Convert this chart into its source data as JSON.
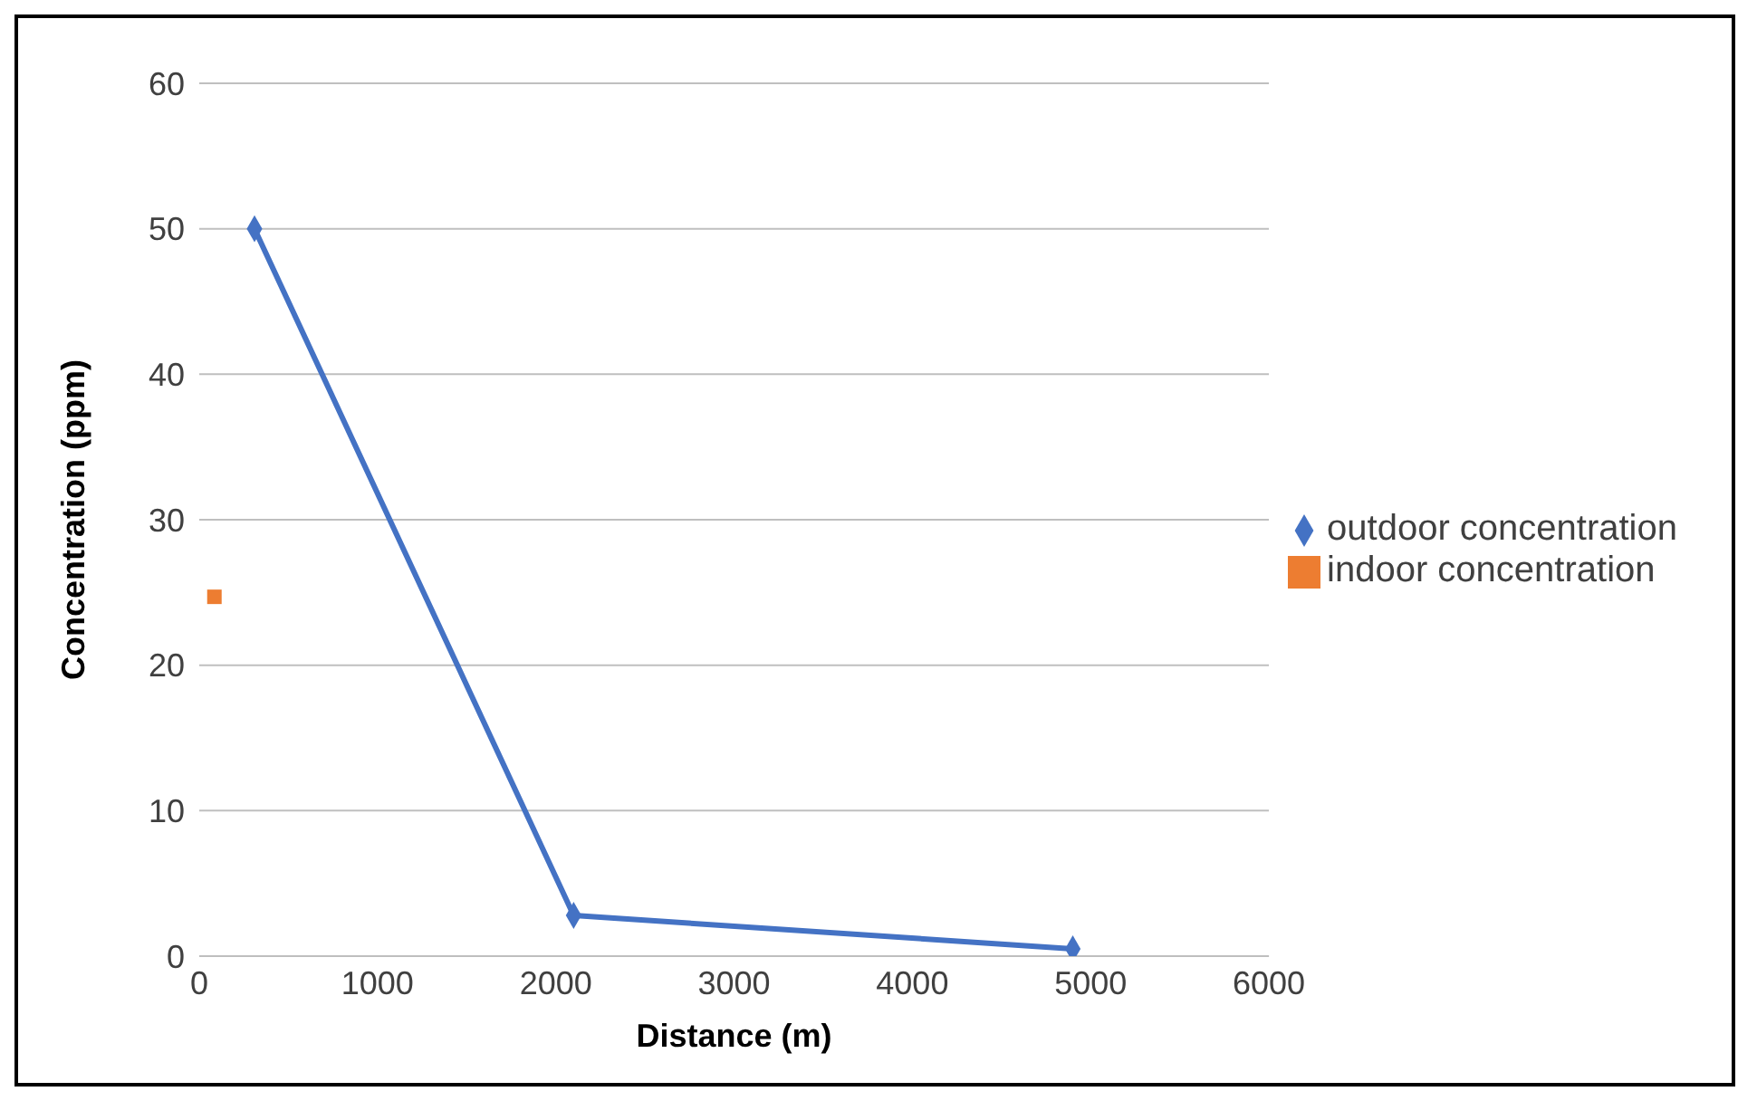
{
  "chart_data": {
    "type": "scatter",
    "xlabel": "Distance (m)",
    "ylabel": "Concentration (ppm)",
    "xlim": [
      0,
      6000
    ],
    "xticks": [
      0,
      1000,
      2000,
      3000,
      4000,
      5000,
      6000
    ],
    "ylim": [
      0,
      60
    ],
    "yticks": [
      0,
      10,
      20,
      30,
      40,
      50,
      60
    ],
    "grid": "y",
    "legend": "right",
    "series": [
      {
        "name": "outdoor concentration",
        "type": "line",
        "marker": "diamond",
        "color": "#4472c4",
        "x": [
          310,
          2100,
          4900
        ],
        "values": [
          50,
          2.8,
          0.5
        ]
      },
      {
        "name": "indoor concentration",
        "type": "scatter",
        "marker": "square",
        "color": "#ed7d31",
        "x": [
          85
        ],
        "values": [
          24.7
        ]
      }
    ]
  }
}
